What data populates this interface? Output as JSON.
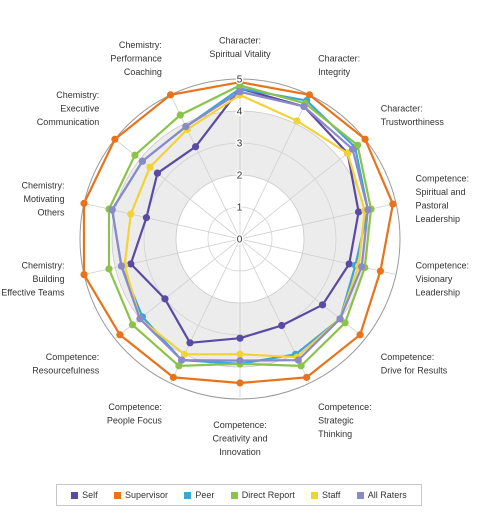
{
  "chart_data": {
    "type": "radar",
    "axes": [
      {
        "label": [
          "Character:",
          "Spiritual Vitality"
        ]
      },
      {
        "label": [
          "Character:",
          "Integrity"
        ]
      },
      {
        "label": [
          "Character:",
          "Trustworthiness"
        ]
      },
      {
        "label": [
          "Competence:",
          "Spiritual and",
          "Pastoral",
          "Leadership"
        ]
      },
      {
        "label": [
          "Competence:",
          "Visionary",
          "Leadership"
        ]
      },
      {
        "label": [
          "Competence:",
          "Drive for Results"
        ]
      },
      {
        "label": [
          "Competence:",
          "Strategic",
          "Thinking"
        ]
      },
      {
        "label": [
          "Competence:",
          "Creativity and",
          "Innovation"
        ]
      },
      {
        "label": [
          "Competence:",
          "People Focus"
        ]
      },
      {
        "label": [
          "Competence:",
          "Resourcefulness"
        ]
      },
      {
        "label": [
          "Chemistry:",
          "Building",
          "Effective Teams"
        ]
      },
      {
        "label": [
          "Chemistry:",
          "Motivating",
          "Others"
        ]
      },
      {
        "label": [
          "Chemistry:",
          "Executive",
          "Communication"
        ]
      },
      {
        "label": [
          "Chemistry:",
          "Performance",
          "Coaching"
        ]
      }
    ],
    "range": [
      0,
      5
    ],
    "ticks": [
      "0",
      "1",
      "2",
      "3",
      "4",
      "5"
    ],
    "series": [
      {
        "name": "Self",
        "color": "#5b4aa3",
        "values": [
          4.7,
          4.6,
          4.3,
          3.8,
          3.5,
          3.3,
          3.0,
          3.1,
          3.6,
          3.0,
          3.5,
          3.0,
          3.3,
          3.2
        ]
      },
      {
        "name": "Supervisor",
        "color": "#e8731a",
        "values": [
          4.9,
          5.0,
          5.0,
          4.9,
          4.5,
          4.8,
          4.8,
          4.5,
          4.8,
          4.8,
          5.0,
          5.0,
          5.0,
          5.0
        ]
      },
      {
        "name": "Peer",
        "color": "#3da5d9",
        "values": [
          4.7,
          4.8,
          4.6,
          4.1,
          3.7,
          4.0,
          4.0,
          3.9,
          4.2,
          3.9,
          3.8,
          4.1,
          3.9,
          3.9
        ]
      },
      {
        "name": "Direct Report",
        "color": "#8bc34a",
        "values": [
          4.8,
          4.7,
          4.7,
          4.2,
          4.0,
          4.2,
          4.4,
          3.9,
          4.4,
          4.3,
          4.2,
          4.2,
          4.2,
          4.3
        ]
      },
      {
        "name": "Staff",
        "color": "#f2d337",
        "values": [
          4.5,
          4.1,
          4.3,
          4.0,
          3.8,
          4.0,
          4.1,
          3.6,
          4.0,
          4.0,
          3.7,
          3.5,
          3.6,
          3.8
        ]
      },
      {
        "name": "All Raters",
        "color": "#8c89c9",
        "values": [
          4.6,
          4.6,
          4.5,
          4.1,
          3.9,
          4.0,
          4.2,
          3.8,
          4.2,
          4.0,
          3.8,
          4.1,
          3.9,
          3.9
        ]
      }
    ],
    "grid": true,
    "legend": "bottom"
  }
}
